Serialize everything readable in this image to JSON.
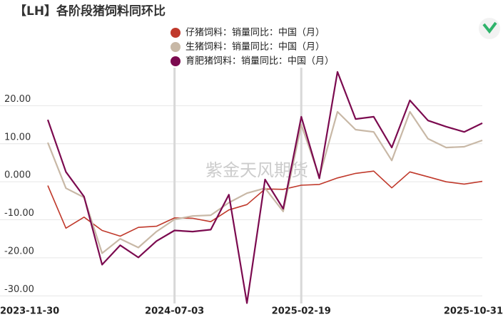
{
  "chart_data": {
    "type": "line",
    "title": "【LH】各阶段猪饲料同环比",
    "watermark": "紫金天风期货",
    "categories": [
      "2023-11-30",
      null,
      null,
      null,
      null,
      null,
      null,
      "2024-07-03",
      null,
      null,
      null,
      null,
      null,
      null,
      "2025-02-19",
      null,
      null,
      null,
      null,
      null,
      null,
      null,
      null,
      null,
      "2025-10-31"
    ],
    "series": [
      {
        "name": "仔猪饲料：销量同比：中国（月）",
        "color": "#c0392b",
        "values": [
          -1.0,
          -12.2,
          -9.3,
          -12.8,
          -14.3,
          -12.0,
          -11.7,
          -9.5,
          -9.6,
          -10.5,
          -7.4,
          -6.0,
          -1.9,
          -2.0,
          -0.9,
          -0.7,
          1.0,
          2.2,
          2.8,
          -1.6,
          2.6,
          1.3,
          0.0,
          -0.6,
          0.1
        ]
      },
      {
        "name": "生猪饲料：销量同比：中国（月）",
        "color": "#c8b8a6",
        "values": [
          10.3,
          -1.7,
          -4.1,
          -18.8,
          -15.0,
          -17.3,
          -13.1,
          -9.9,
          -9.0,
          -8.8,
          -5.5,
          -3.0,
          -1.7,
          -7.8,
          15.0,
          1.3,
          18.4,
          13.7,
          13.1,
          5.6,
          18.4,
          11.3,
          9.0,
          9.2,
          10.9
        ]
      },
      {
        "name": "育肥猪饲料：销量同比：中国（月）",
        "color": "#7b0a4f",
        "values": [
          16.3,
          2.6,
          -3.9,
          -21.8,
          -16.7,
          -19.9,
          -15.6,
          -12.8,
          -13.1,
          -12.6,
          -3.4,
          -31.9,
          0.6,
          -7.1,
          17.1,
          0.9,
          28.9,
          16.5,
          17.1,
          9.0,
          21.4,
          16.1,
          14.5,
          13.1,
          15.4
        ]
      }
    ],
    "ylim": [
      -32,
      30
    ],
    "yticks": [
      {
        "value": 20,
        "label": "20.00"
      },
      {
        "value": 10,
        "label": "10.00"
      },
      {
        "value": 0,
        "label": "0.000"
      },
      {
        "value": -10,
        "label": "-10.00"
      },
      {
        "value": -20,
        "label": "-20.00"
      },
      {
        "value": -30,
        "label": "-30.00"
      }
    ],
    "grid": true
  }
}
